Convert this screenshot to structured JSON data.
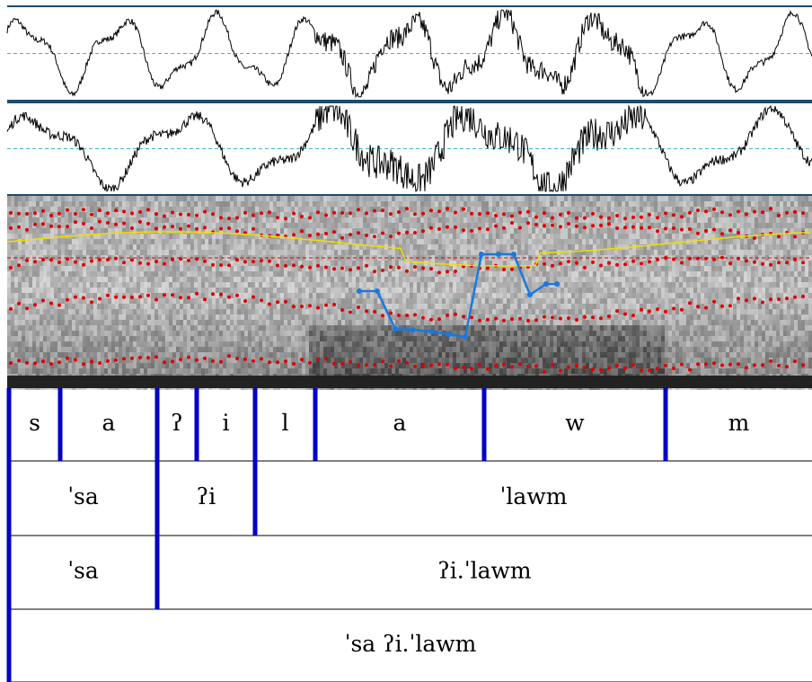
{
  "tiers": [
    {
      "intervals": [
        "s",
        "a",
        "ʔ",
        "i",
        "l",
        "a",
        "w",
        "m"
      ]
    },
    {
      "intervals": [
        "ˈsa",
        "ʔi",
        "ˈlawm"
      ]
    },
    {
      "intervals": [
        "ˈsa",
        "ʔi.ˈlawm"
      ]
    },
    {
      "intervals": [
        "ˈsa ʔi.ˈlawm"
      ]
    }
  ]
}
